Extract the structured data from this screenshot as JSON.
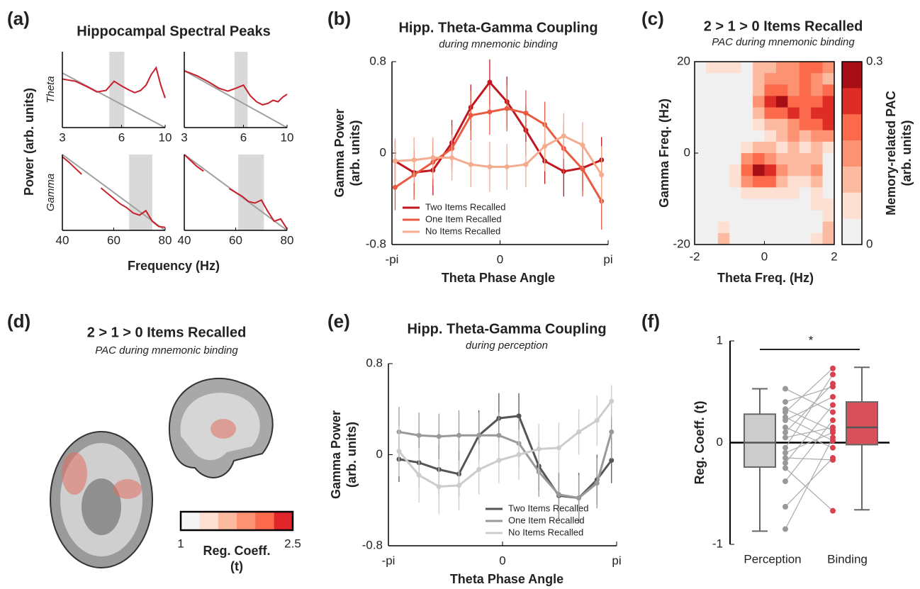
{
  "chart_data": [
    {
      "type": "spectra",
      "panel": "(a)",
      "title": "Hippocampal Spectral Peaks",
      "ylabel": "Power (arb. units)",
      "xlabel": "Frequency (Hz)",
      "ylim": [
        0,
        1
      ],
      "line_color": "#c8202a",
      "fit_color": "#a0a0a0",
      "band_color": "#d9d9d9",
      "rows": [
        {
          "label": "Theta",
          "plots": [
            {
              "log_x": true,
              "xlim": [
                3,
                10
              ],
              "xticks": [
                3,
                6,
                10
              ],
              "band": [
                5.2,
                6.2
              ],
              "x": [
                3,
                3.5,
                4,
                4.5,
                5,
                5.5,
                6,
                6.5,
                7,
                7.5,
                8,
                8.5,
                9,
                9.5,
                10
              ],
              "values": [
                0.64,
                0.61,
                0.54,
                0.47,
                0.49,
                0.61,
                0.55,
                0.5,
                0.46,
                0.49,
                0.56,
                0.7,
                0.79,
                0.56,
                0.39
              ],
              "fit_x": [
                3,
                10
              ],
              "fit_values": [
                0.72,
                0
              ]
            },
            {
              "log_x": true,
              "xlim": [
                3,
                10
              ],
              "xticks": [
                3,
                6,
                10
              ],
              "band": [
                5.4,
                6.3
              ],
              "x": [
                3,
                3.5,
                4,
                4.5,
                5,
                5.5,
                6,
                6.5,
                7,
                7.5,
                8,
                8.5,
                9,
                9.5,
                10
              ],
              "values": [
                0.75,
                0.68,
                0.6,
                0.52,
                0.48,
                0.52,
                0.56,
                0.42,
                0.34,
                0.3,
                0.32,
                0.36,
                0.34,
                0.4,
                0.44
              ],
              "fit_x": [
                3,
                10
              ],
              "fit_values": [
                0.75,
                0
              ]
            }
          ]
        },
        {
          "label": "Gamma",
          "plots": [
            {
              "log_x": false,
              "xlim": [
                40,
                80
              ],
              "xticks": [
                40,
                60,
                80
              ],
              "band": [
                66,
                75
              ],
              "x": [
                40,
                42.5,
                45,
                47.5,
                50,
                52.5,
                55,
                57.5,
                60,
                62.5,
                65,
                67.5,
                70,
                72.5,
                75,
                77.5,
                80
              ],
              "values": [
                0.97,
                0.9,
                0.82,
                0.74,
                null,
                null,
                0.56,
                0.49,
                0.42,
                0.35,
                0.3,
                0.23,
                0.2,
                0.26,
                0.12,
                0.05,
                0.04
              ],
              "fit_x": [
                40,
                80
              ],
              "fit_values": [
                1,
                0
              ]
            },
            {
              "log_x": false,
              "xlim": [
                40,
                80
              ],
              "xticks": [
                40,
                60,
                80
              ],
              "band": [
                61,
                71
              ],
              "x": [
                40,
                42.5,
                45,
                47.5,
                50,
                52.5,
                55,
                57.5,
                60,
                62.5,
                65,
                67.5,
                70,
                72.5,
                75,
                77.5,
                80
              ],
              "values": [
                1,
                0.92,
                0.84,
                0.78,
                null,
                null,
                null,
                0.55,
                0.5,
                0.45,
                0.38,
                0.36,
                0.4,
                0.25,
                0.12,
                0.15,
                0.02
              ],
              "fit_x": [
                40,
                80
              ],
              "fit_values": [
                1,
                0
              ]
            }
          ]
        }
      ]
    },
    {
      "type": "line",
      "panel": "(b)",
      "title": "Hipp. Theta-Gamma Coupling",
      "subtitle": "during mnemonic binding",
      "ylabel": [
        "Gamma Power",
        "(arb. units)"
      ],
      "xlabel": "Theta Phase Angle",
      "xlim": [
        -3.1416,
        3.1416
      ],
      "xticks": [
        {
          "value": -3.1416,
          "label": "-pi"
        },
        0,
        {
          "value": 3.1416,
          "label": "pi"
        }
      ],
      "ylim": [
        -0.8,
        0.8
      ],
      "yticks": [
        -0.8,
        0,
        0.8
      ],
      "legend": "lower left",
      "x": [
        -3.05,
        -2.5,
        -1.95,
        -1.4,
        -0.85,
        -0.3,
        0.2,
        0.75,
        1.3,
        1.85,
        2.4,
        2.95
      ],
      "series": [
        {
          "name": "Two Items Recalled",
          "color": "#c01820",
          "values": [
            -0.07,
            -0.17,
            -0.15,
            0.09,
            0.4,
            0.62,
            0.45,
            0.2,
            -0.07,
            -0.16,
            -0.13,
            -0.06
          ],
          "errors": [
            0.18,
            0.2,
            0.22,
            0.2,
            0.2,
            0.2,
            0.22,
            0.22,
            0.2,
            0.22,
            0.2,
            0.2
          ]
        },
        {
          "name": "One Item Recalled",
          "color": "#ea5a40",
          "values": [
            -0.3,
            -0.19,
            -0.08,
            0.04,
            0.33,
            0.36,
            0.39,
            0.35,
            0.25,
            0.04,
            -0.14,
            -0.42
          ],
          "errors": [
            0.2,
            0.22,
            0.2,
            0.2,
            0.22,
            0.2,
            0.2,
            0.2,
            0.2,
            0.22,
            0.24,
            0.25
          ]
        },
        {
          "name": "No Items Recalled",
          "color": "#f4ab8e",
          "values": [
            -0.07,
            -0.06,
            -0.04,
            -0.04,
            -0.1,
            -0.12,
            -0.12,
            -0.1,
            0.06,
            0.15,
            0.07,
            -0.19
          ],
          "errors": [
            0.2,
            0.2,
            0.18,
            0.2,
            0.2,
            0.22,
            0.2,
            0.2,
            0.22,
            0.2,
            0.2,
            0.25
          ]
        }
      ]
    },
    {
      "type": "heatmap",
      "panel": "(c)",
      "title": "2 > 1 > 0 Items Recalled",
      "subtitle": "PAC during mnemonic binding",
      "ylabel": "Gamma Freq. (Hz)",
      "xlabel": "Theta Freq. (Hz)",
      "colorbar_label": [
        "Memory-related PAC",
        "(arb. units)"
      ],
      "xlim": [
        -2,
        2
      ],
      "xticks": [
        -2,
        0,
        2
      ],
      "ylim": [
        -20,
        20
      ],
      "yticks": [
        -20,
        0,
        20
      ],
      "clim": [
        0,
        0.3
      ],
      "cticks": [
        0,
        0.3
      ],
      "colorscale": [
        "#f0f0f0",
        "#fde0d2",
        "#fcbba1",
        "#fc9272",
        "#fb6a4a",
        "#de2d26",
        "#a50f15"
      ],
      "z": [
        [
          0,
          0.05,
          0.05,
          0.05,
          0,
          0.1,
          0.1,
          0.15,
          0.15,
          0.2,
          0.2,
          0.15
        ],
        [
          0,
          0,
          0,
          0,
          0,
          0.1,
          0.15,
          0.15,
          0.15,
          0.2,
          0.15,
          0.1
        ],
        [
          0,
          0,
          0,
          0,
          0,
          0.1,
          0.2,
          0.2,
          0.15,
          0.2,
          0.15,
          0.2
        ],
        [
          0,
          0,
          0,
          0,
          0,
          0.15,
          0.25,
          0.3,
          0.2,
          0.2,
          0.2,
          0.25
        ],
        [
          0,
          0,
          0,
          0,
          0,
          0.1,
          0.2,
          0.2,
          0.25,
          0.2,
          0.25,
          0.25
        ],
        [
          0,
          0,
          0,
          0,
          0,
          0.05,
          0.1,
          0.1,
          0.15,
          0.2,
          0.2,
          0.25
        ],
        [
          0,
          0,
          0,
          0,
          0,
          0,
          0.05,
          0.1,
          0.15,
          0.1,
          0.15,
          0.15
        ],
        [
          0,
          0,
          0,
          0,
          0.05,
          0.1,
          0.1,
          0.05,
          0.1,
          0.05,
          0.1,
          0.05
        ],
        [
          0,
          0,
          0,
          0,
          0.15,
          0.2,
          0.15,
          0.1,
          0.1,
          0.1,
          0.1,
          0
        ],
        [
          0,
          0,
          0,
          0.05,
          0.2,
          0.3,
          0.25,
          0.15,
          0.1,
          0.1,
          0.15,
          0
        ],
        [
          0,
          0,
          0,
          0.05,
          0.15,
          0.2,
          0.2,
          0.1,
          0.05,
          0.05,
          0.1,
          0
        ],
        [
          0,
          0,
          0,
          0,
          0.05,
          0.05,
          0.05,
          0.05,
          0.05,
          0,
          0.05,
          0
        ],
        [
          0,
          0,
          0,
          0,
          0,
          0,
          0,
          0,
          0,
          0,
          0.05,
          0.05
        ],
        [
          0,
          0,
          0,
          0,
          0,
          0,
          0,
          0,
          0,
          0,
          0,
          0.05
        ],
        [
          0,
          0,
          0.05,
          0,
          0,
          0,
          0,
          0,
          0,
          0,
          0,
          0.1
        ],
        [
          0,
          0,
          0.1,
          0,
          0,
          0,
          0,
          0,
          0,
          0,
          0.05,
          0.1
        ]
      ]
    },
    {
      "type": "brain-map",
      "panel": "(d)",
      "title": "2 > 1 > 0 Items Recalled",
      "subtitle": "PAC during mnemonic binding",
      "colorbar_label": [
        "Reg. Coeff.",
        "(t)"
      ],
      "clim": [
        1,
        2.5
      ],
      "cticks": [
        1,
        2.5
      ],
      "colorscale": [
        "#f5f5f5",
        "#fde0d2",
        "#fcbba1",
        "#fc9272",
        "#fb6a4a",
        "#e0262a"
      ]
    },
    {
      "type": "line",
      "panel": "(e)",
      "title": "Hipp. Theta-Gamma Coupling",
      "subtitle": "during perception",
      "ylabel": [
        "Gamma Power",
        "(arb. units)"
      ],
      "xlabel": "Theta Phase Angle",
      "xlim": [
        -3.1416,
        3.1416
      ],
      "xticks": [
        {
          "value": -3.1416,
          "label": "-pi"
        },
        0,
        {
          "value": 3.1416,
          "label": "pi"
        }
      ],
      "ylim": [
        -0.8,
        0.8
      ],
      "yticks": [
        -0.8,
        0,
        0.8
      ],
      "legend": "lower right",
      "x": [
        -2.85,
        -2.3,
        -1.75,
        -1.2,
        -0.65,
        -0.1,
        0.45,
        1.0,
        1.55,
        2.1,
        2.6,
        3.0
      ],
      "series": [
        {
          "name": "Two Items Recalled",
          "color": "#555555",
          "values": [
            -0.04,
            -0.07,
            -0.13,
            -0.17,
            0.17,
            0.32,
            0.34,
            -0.1,
            -0.36,
            -0.38,
            -0.22,
            -0.05
          ],
          "errors": [
            0.2,
            0.22,
            0.22,
            0.2,
            0.22,
            0.22,
            0.2,
            0.22,
            0.2,
            0.22,
            0.22,
            0.2
          ]
        },
        {
          "name": "One Item Recalled",
          "color": "#999999",
          "values": [
            0.2,
            0.17,
            0.16,
            0.17,
            0.17,
            0.17,
            0.1,
            -0.15,
            -0.35,
            -0.38,
            -0.25,
            0.2
          ],
          "errors": [
            0.22,
            0.2,
            0.2,
            0.22,
            0.2,
            0.2,
            0.22,
            0.22,
            0.2,
            0.2,
            0.22,
            0.24
          ]
        },
        {
          "name": "No Items Recalled",
          "color": "#cccccc",
          "values": [
            0.03,
            -0.18,
            -0.28,
            -0.27,
            -0.13,
            -0.05,
            0,
            0.05,
            0.06,
            0.2,
            0.3,
            0.47
          ],
          "errors": [
            0.22,
            0.24,
            0.24,
            0.22,
            0.22,
            0.2,
            0.22,
            0.22,
            0.22,
            0.2,
            0.22,
            0.14
          ]
        }
      ]
    },
    {
      "type": "box",
      "panel": "(f)",
      "ylabel": "Reg. Coeff. (t)",
      "ylim": [
        -1,
        1
      ],
      "yticks": [
        -1,
        0,
        1
      ],
      "annotation": "*",
      "boxes": [
        {
          "name": "Perception",
          "color": "#cccccc",
          "point_color": "#999999",
          "low": -0.87,
          "q1": -0.24,
          "median": 0,
          "q3": 0.28,
          "high": 0.53,
          "points": [
            0.53,
            0.4,
            0.33,
            0.3,
            0.25,
            0.22,
            0.15,
            0.1,
            0.05,
            -0.05,
            -0.1,
            -0.15,
            -0.2,
            -0.25,
            -0.38,
            -0.63,
            -0.85
          ]
        },
        {
          "name": "Binding",
          "color": "#d9505a",
          "point_color": "#d9414e",
          "low": -0.66,
          "q1": -0.02,
          "median": 0.15,
          "q3": 0.4,
          "high": 0.74,
          "points": [
            0.3,
            0.55,
            0.12,
            0.73,
            0.02,
            0.45,
            -0.05,
            0.58,
            0.15,
            0.67,
            0.1,
            -0.17,
            0.37,
            -0.67,
            0.22,
            -0.15,
            0.05
          ]
        }
      ]
    }
  ]
}
